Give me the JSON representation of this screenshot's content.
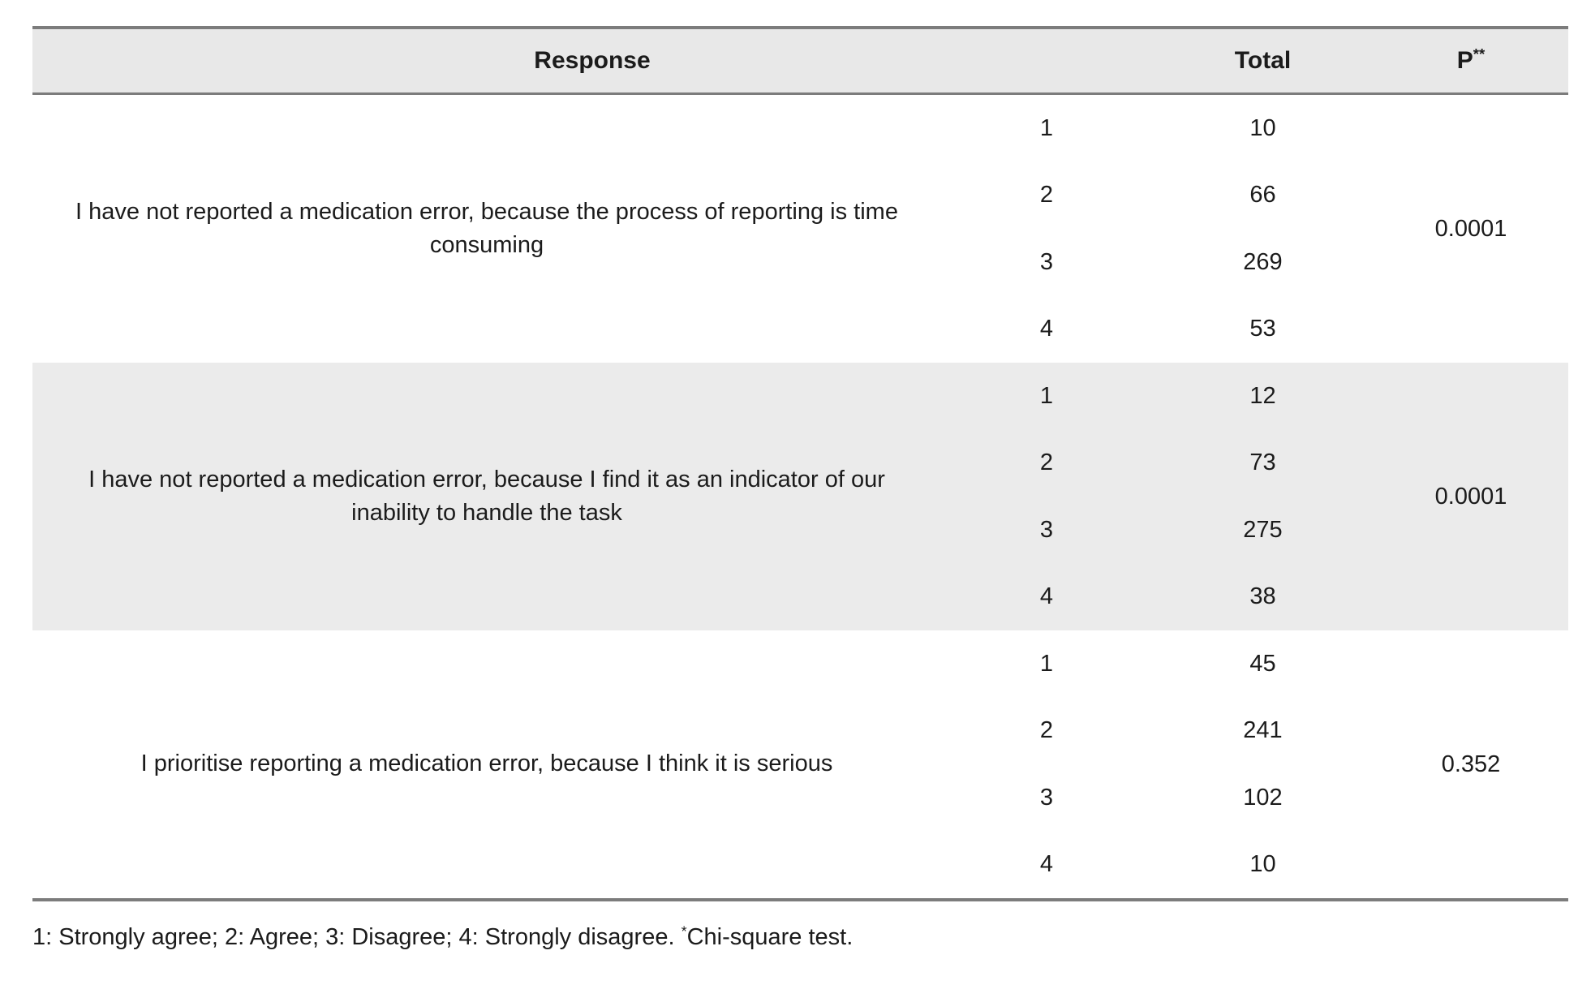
{
  "table": {
    "header": {
      "response_label": "Response",
      "total_label": "Total",
      "p_label": "P",
      "p_superscript": "**"
    },
    "blocks": [
      {
        "question": "I have not reported a medication error, because the process of reporting is time consuming",
        "rows": [
          {
            "response": "1",
            "total": "10"
          },
          {
            "response": "2",
            "total": "66"
          },
          {
            "response": "3",
            "total": "269"
          },
          {
            "response": "4",
            "total": "53"
          }
        ],
        "p_value": "0.0001"
      },
      {
        "question": "I have not reported a medication error, because I find it as an indicator of our inability to handle the task",
        "rows": [
          {
            "response": "1",
            "total": "12"
          },
          {
            "response": "2",
            "total": "73"
          },
          {
            "response": "3",
            "total": "275"
          },
          {
            "response": "4",
            "total": "38"
          }
        ],
        "p_value": "0.0001"
      },
      {
        "question": "I prioritise reporting a medication error, because I think it is serious",
        "rows": [
          {
            "response": "1",
            "total": "45"
          },
          {
            "response": "2",
            "total": "241"
          },
          {
            "response": "3",
            "total": "102"
          },
          {
            "response": "4",
            "total": "10"
          }
        ],
        "p_value": "0.352"
      }
    ],
    "footnote": {
      "legend": "1: Strongly agree; 2: Agree; 3: Disagree; 4: Strongly disagree. ",
      "marker": "*",
      "test_name": "Chi-square test."
    }
  },
  "colors": {
    "stripe": "#ebebeb",
    "header_bg": "#e8e8e8",
    "rule": "#7c7c7c",
    "text": "#1b1b1b"
  }
}
